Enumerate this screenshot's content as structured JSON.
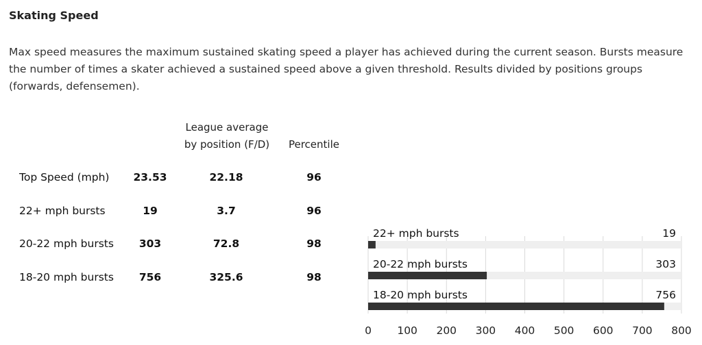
{
  "section": {
    "title": "Skating Speed",
    "description": "Max speed measures the maximum sustained skating speed a player has achieved during the current season. Bursts measure the number of times a skater achieved a sustained speed above a given threshold. Results divided by positions groups (forwards, defensemen)."
  },
  "table": {
    "headers": {
      "league_average_line1": "League average",
      "league_average_line2": "by position (F/D)",
      "percentile": "Percentile"
    },
    "rows": [
      {
        "label": "Top Speed (mph)",
        "value": "23.53",
        "league_avg": "22.18",
        "percentile": "96"
      },
      {
        "label": "22+ mph bursts",
        "value": "19",
        "league_avg": "3.7",
        "percentile": "96"
      },
      {
        "label": "20-22 mph bursts",
        "value": "303",
        "league_avg": "72.8",
        "percentile": "98"
      },
      {
        "label": "18-20 mph bursts",
        "value": "756",
        "league_avg": "325.6",
        "percentile": "98"
      }
    ]
  },
  "chart_data": {
    "type": "bar",
    "orientation": "horizontal",
    "categories": [
      "22+ mph bursts",
      "20-22 mph bursts",
      "18-20 mph bursts"
    ],
    "values": [
      19,
      303,
      756
    ],
    "xlim": [
      0,
      800
    ],
    "xticks": [
      0,
      100,
      200,
      300,
      400,
      500,
      600,
      700,
      800
    ],
    "grid": true,
    "title": "",
    "xlabel": "",
    "ylabel": "",
    "colors": {
      "bar": "#333333",
      "track": "#efefef",
      "grid": "#d8d8d8"
    }
  }
}
